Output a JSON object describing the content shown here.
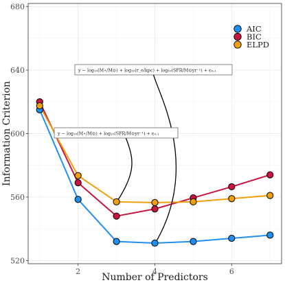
{
  "chart_data": {
    "type": "line",
    "xlabel": "Number of Predictors",
    "ylabel": "Information Criterion",
    "xlim": [
      0.7,
      7.3
    ],
    "ylim": [
      518,
      682
    ],
    "x_ticks": [
      2,
      4,
      6
    ],
    "y_ticks": [
      520,
      560,
      600,
      640,
      680
    ],
    "grid": true,
    "legend_position": "top-right",
    "x": [
      1,
      2,
      3,
      4,
      5,
      6,
      7
    ],
    "series": [
      {
        "name": "AIC",
        "color": "#1f8ff0",
        "values": [
          615,
          558.5,
          532,
          531,
          532,
          534,
          536
        ]
      },
      {
        "name": "BIC",
        "color": "#c8143e",
        "values": [
          620,
          569,
          548,
          552.5,
          559.5,
          566.5,
          574
        ]
      },
      {
        "name": "ELPD",
        "color": "#f0a00f",
        "values": [
          617.5,
          573.5,
          557,
          556.5,
          557,
          559,
          561
        ]
      }
    ],
    "annotations": [
      {
        "text": "y ∼ log₁₀(M⋆/M⊙) + log₁₀(r_e/kpc) + log₁₀(SFR/M⊙yr⁻¹) + ϵ₀.₁",
        "target_series": "AIC",
        "target_x": 4
      },
      {
        "text": "y ∼ log₁₀(M⋆/M⊙) + log₁₀(SFR/M⊙yr⁻¹) + ϵ₀.₁",
        "target_series": "ELPD",
        "target_x": 3
      }
    ]
  }
}
